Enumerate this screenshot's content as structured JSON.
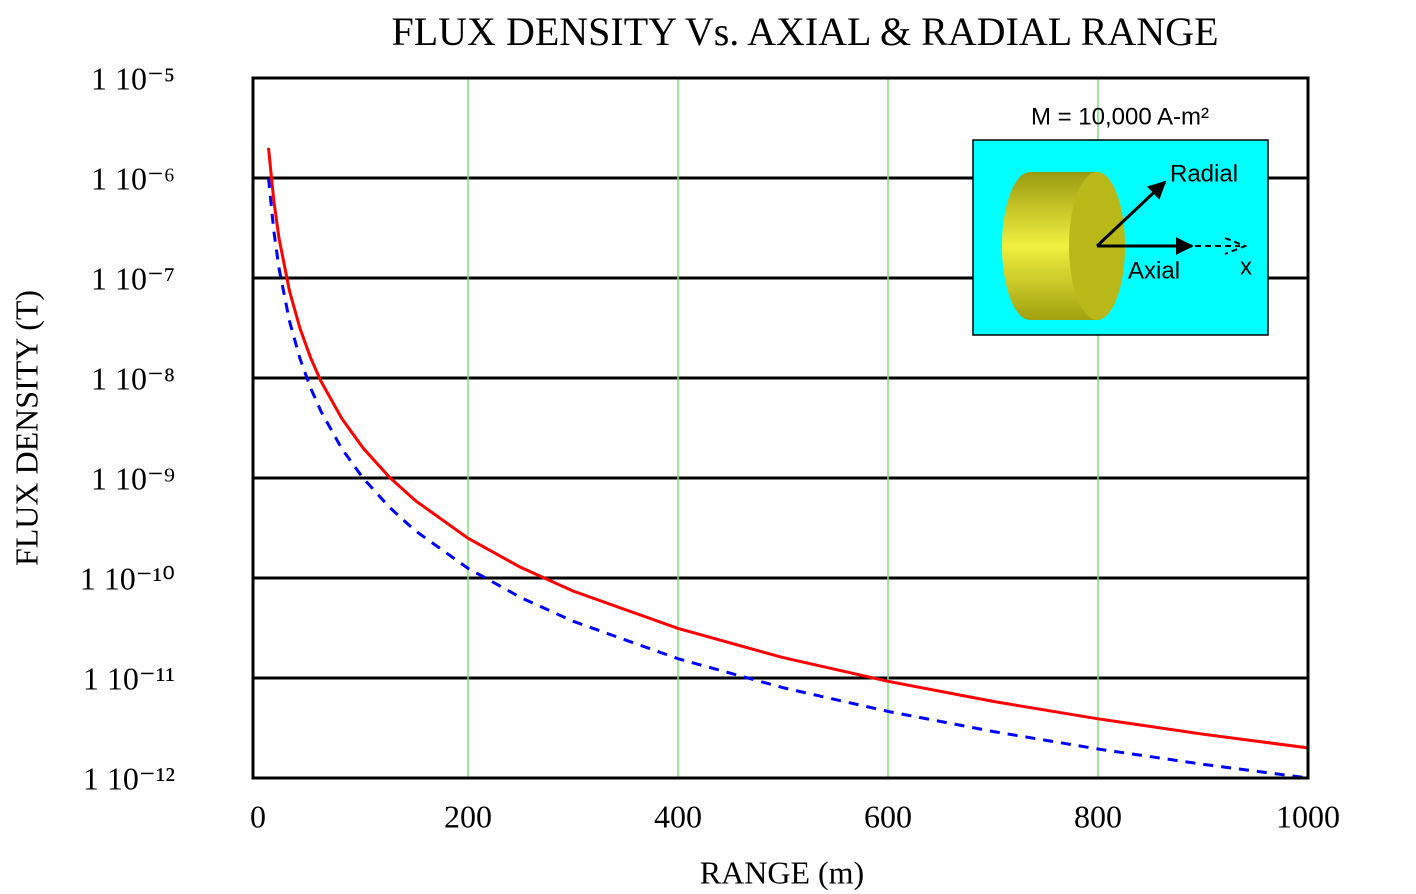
{
  "chart_data": {
    "type": "line",
    "title": "FLUX DENSITY Vs. AXIAL & RADIAL RANGE",
    "x_label": "RANGE (m)",
    "y_label": "FLUX DENSITY (T)",
    "x": [
      10,
      15,
      20,
      30,
      40,
      50,
      60,
      80,
      100,
      125,
      150,
      200,
      250,
      300,
      400,
      500,
      600,
      700,
      800,
      900,
      1000
    ],
    "series": [
      {
        "name": "Axial",
        "color": "#ff0000",
        "dashed": false,
        "values": [
          2e-06,
          5.93e-07,
          2.5e-07,
          7.41e-08,
          3.13e-08,
          1.6e-08,
          9.26e-09,
          3.91e-09,
          2e-09,
          1.02e-09,
          5.93e-10,
          2.5e-10,
          1.28e-10,
          7.41e-11,
          3.13e-11,
          1.6e-11,
          9.26e-12,
          5.83e-12,
          3.91e-12,
          2.74e-12,
          2e-12
        ]
      },
      {
        "name": "Radial",
        "color": "#0000ff",
        "dashed": true,
        "values": [
          1e-06,
          2.96e-07,
          1.25e-07,
          3.7e-08,
          1.56e-08,
          8e-09,
          4.63e-09,
          1.95e-09,
          1e-09,
          5.12e-10,
          2.96e-10,
          1.25e-10,
          6.4e-11,
          3.7e-11,
          1.56e-11,
          8e-12,
          4.63e-12,
          2.92e-12,
          1.95e-12,
          1.37e-12,
          1e-12
        ]
      }
    ],
    "xlim": [
      0,
      1000
    ],
    "xticks": [
      0,
      200,
      400,
      600,
      800,
      1000
    ],
    "ylim": [
      1e-12,
      1e-05
    ],
    "log_y": true,
    "yticks": [
      {
        "value": 1e-05,
        "label": "1 10⁻⁵"
      },
      {
        "value": 1e-06,
        "label": "1 10⁻⁶"
      },
      {
        "value": 1e-07,
        "label": "1 10⁻⁷"
      },
      {
        "value": 1e-08,
        "label": "1 10⁻⁸"
      },
      {
        "value": 1e-09,
        "label": "1 10⁻⁹"
      },
      {
        "value": 1e-10,
        "label": "1 10⁻¹⁰"
      },
      {
        "value": 1e-11,
        "label": "1 10⁻¹¹"
      },
      {
        "value": 1e-12,
        "label": "1 10⁻¹²"
      }
    ],
    "grid": true,
    "y_grid_color": "#000000",
    "x_grid_color": "#80e080",
    "inset": {
      "moment": "M = 10,000 A-m²",
      "radial": "Radial",
      "axial": "Axial",
      "axis": "x"
    }
  }
}
